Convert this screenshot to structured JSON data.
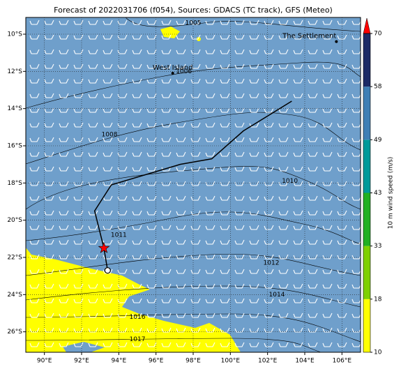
{
  "chart_data": {
    "type": "map",
    "title": "Forecast of 2022031706 (f054), Sources: GDACS (TC track), GFS (Meteo)",
    "xlim": [
      89,
      107
    ],
    "ylim": [
      -27.1,
      -9.1
    ],
    "xticks": [
      {
        "value": 90,
        "label": "90°E"
      },
      {
        "value": 92,
        "label": "92°E"
      },
      {
        "value": 94,
        "label": "94°E"
      },
      {
        "value": 96,
        "label": "96°E"
      },
      {
        "value": 98,
        "label": "98°E"
      },
      {
        "value": 100,
        "label": "100°E"
      },
      {
        "value": 102,
        "label": "102°E"
      },
      {
        "value": 104,
        "label": "104°E"
      },
      {
        "value": 106,
        "label": "106°E"
      }
    ],
    "yticks": [
      {
        "value": -10,
        "label": "10°S"
      },
      {
        "value": -12,
        "label": "12°S"
      },
      {
        "value": -14,
        "label": "14°S"
      },
      {
        "value": -16,
        "label": "16°S"
      },
      {
        "value": -18,
        "label": "18°S"
      },
      {
        "value": -20,
        "label": "20°S"
      },
      {
        "value": -22,
        "label": "22°S"
      },
      {
        "value": -24,
        "label": "24°S"
      },
      {
        "value": -26,
        "label": "26°S"
      }
    ],
    "grid": true,
    "track": {
      "lon": [
        103.3,
        100.7,
        99.0,
        97.3,
        93.6,
        92.7,
        93.2,
        93.4
      ],
      "lat": [
        -13.6,
        -15.2,
        -16.7,
        -17.0,
        -18.1,
        -19.5,
        -21.5,
        -22.7
      ],
      "color": "#000000"
    },
    "places": [
      {
        "name": "West Island",
        "lon": 96.9,
        "lat": -12.1
      },
      {
        "name": "The Settlement",
        "lon": 105.7,
        "lat": -10.4
      }
    ],
    "isobar_labels": [
      {
        "text": "1005",
        "lon": 98.0,
        "lat": -9.4
      },
      {
        "text": "1006",
        "lon": 97.5,
        "lat": -12.0
      },
      {
        "text": "1008",
        "lon": 93.5,
        "lat": -15.4
      },
      {
        "text": "1010",
        "lon": 103.2,
        "lat": -17.9
      },
      {
        "text": "1011",
        "lon": 94.0,
        "lat": -20.8
      },
      {
        "text": "1012",
        "lon": 102.2,
        "lat": -22.3
      },
      {
        "text": "1014",
        "lon": 102.5,
        "lat": -24.0
      },
      {
        "text": "1016",
        "lon": 95.0,
        "lat": -25.2
      },
      {
        "text": "1017",
        "lon": 95.0,
        "lat": -26.4
      }
    ],
    "colorbar": {
      "label": "10 m wind speed (m/s)",
      "ticks": [
        10,
        18,
        33,
        43,
        49,
        58,
        70
      ],
      "colors": [
        "#ffff00",
        "#7fd000",
        "#22b022",
        "#009a9a",
        "#3f7fb5",
        "#1c2a66"
      ],
      "extend_color": "#ff0000"
    }
  }
}
